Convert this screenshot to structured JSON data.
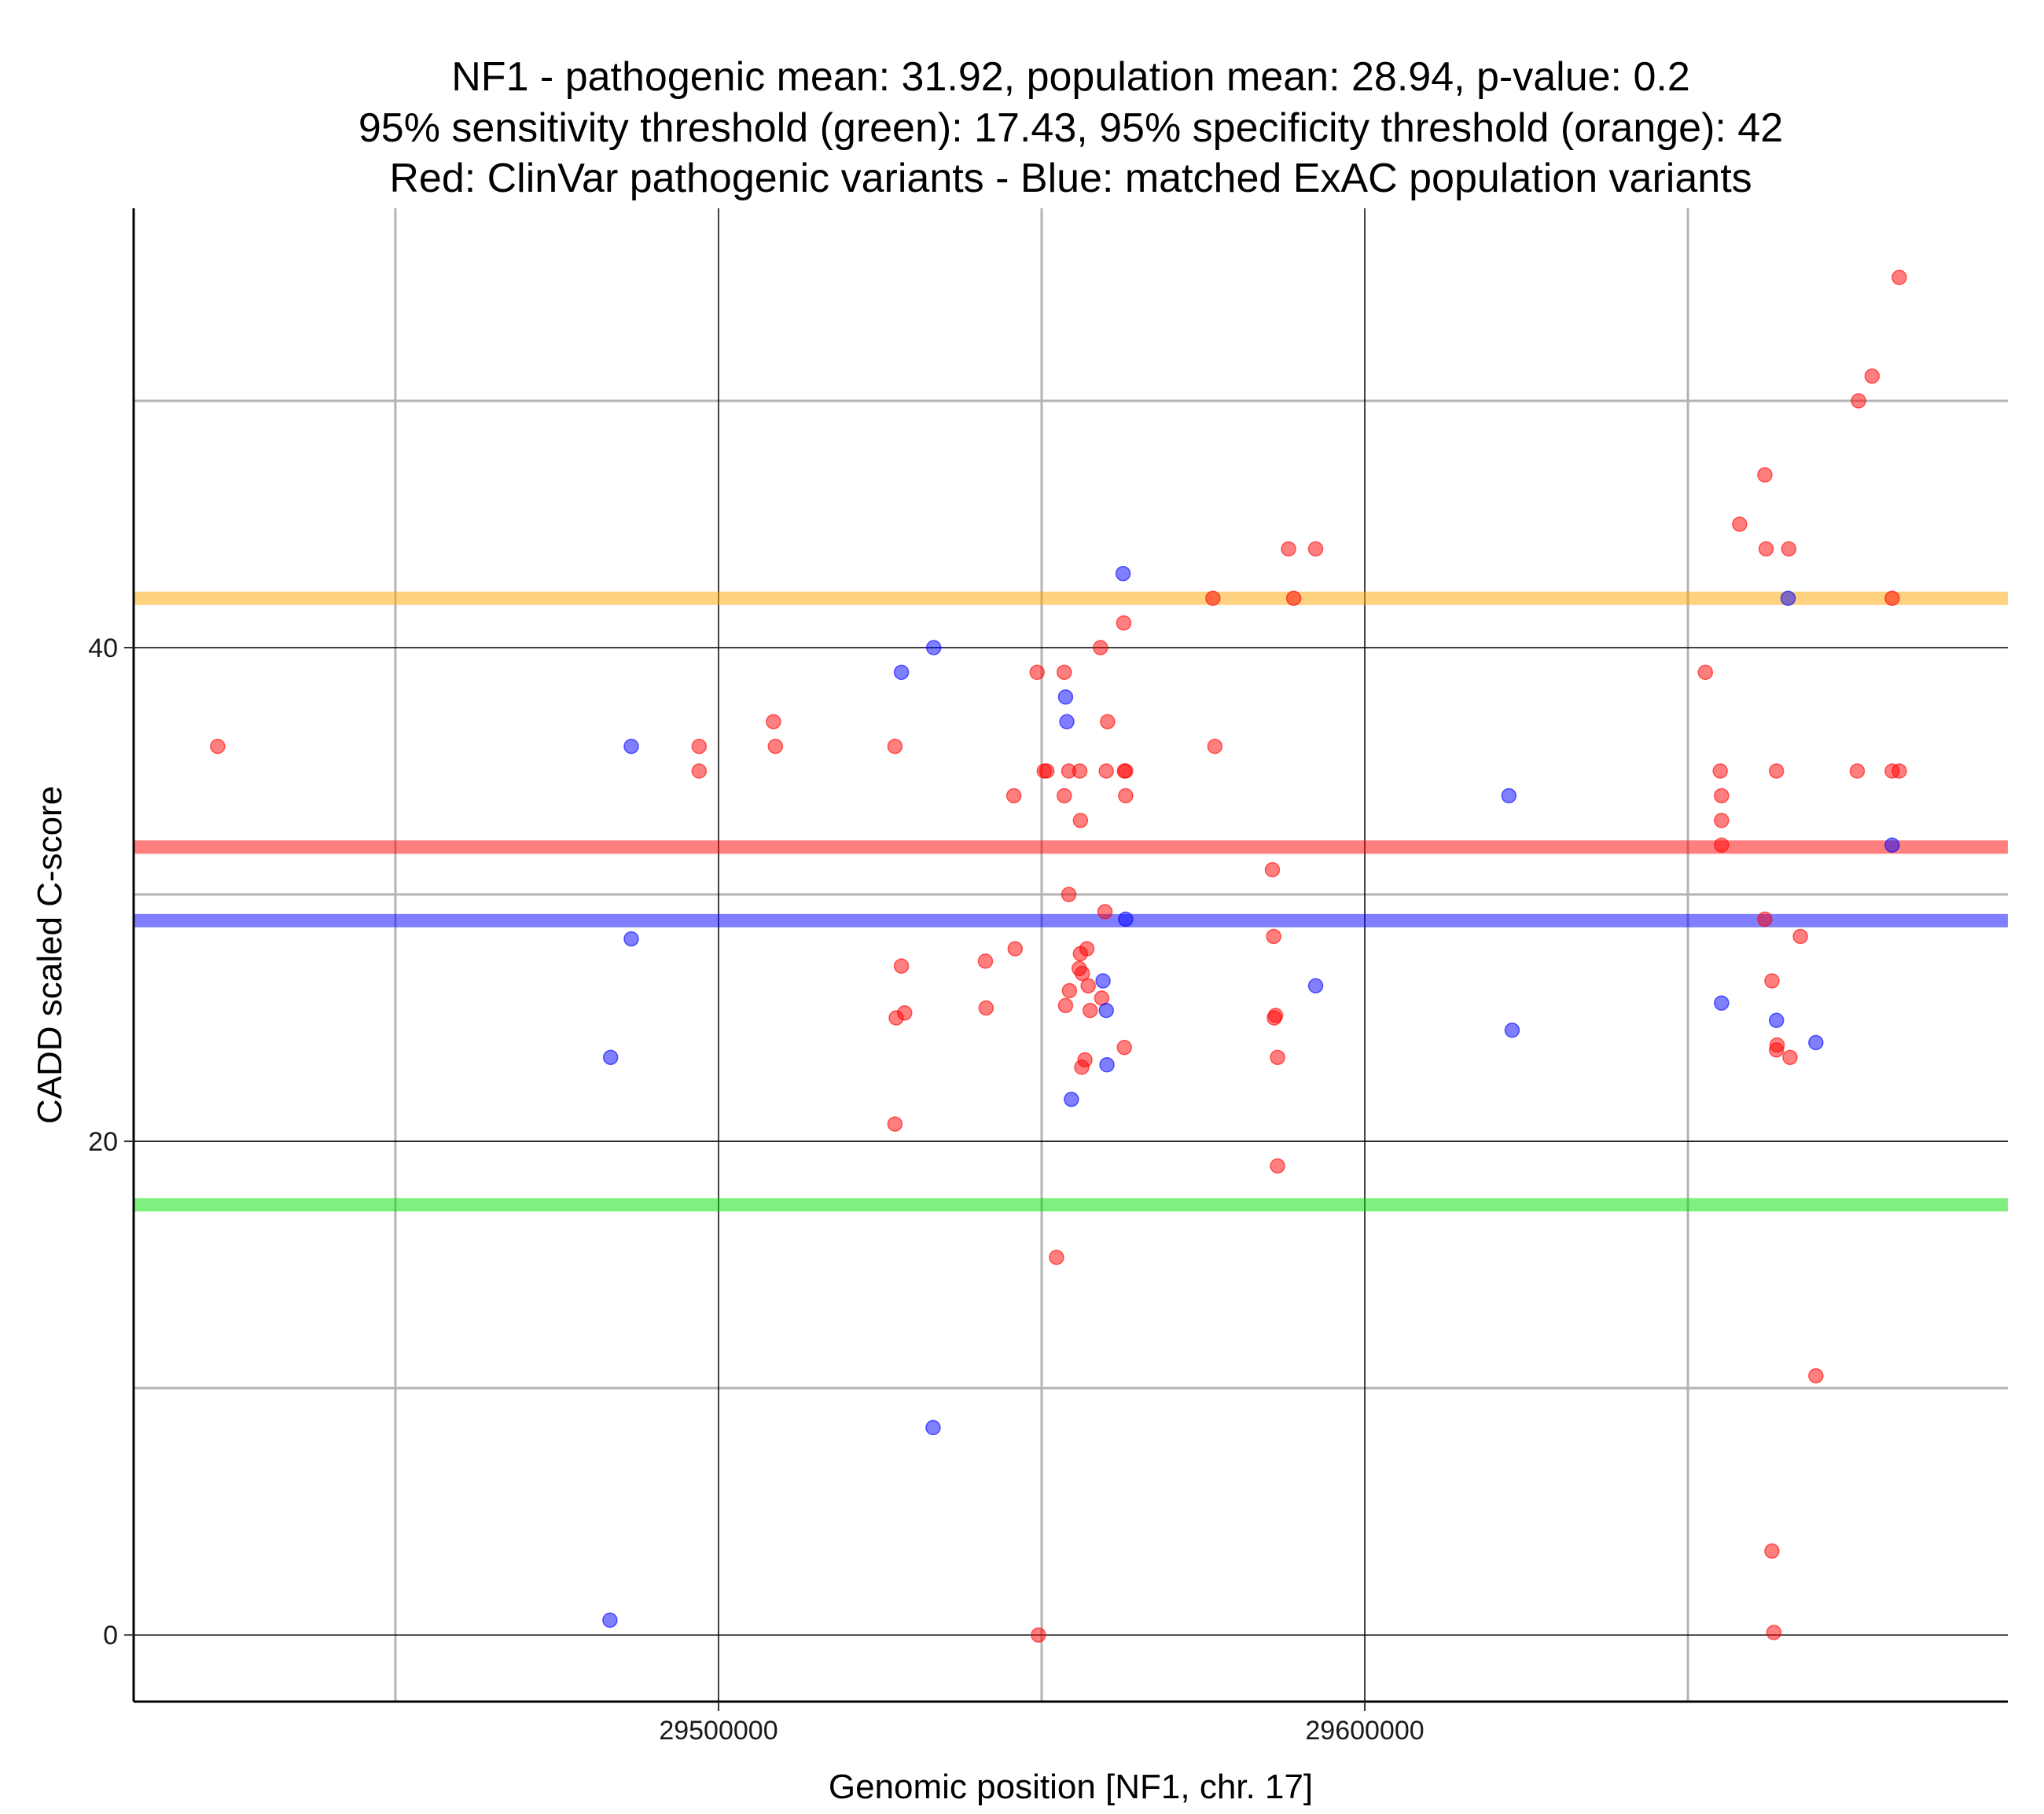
{
  "chart_data": {
    "type": "scatter",
    "title": [
      "NF1 - pathogenic mean: 31.92, population mean: 28.94, p-value: 0.2",
      "95% sensitivity threshold (green): 17.43, 95% specificity threshold (orange): 42",
      "Red: ClinVar pathogenic variants - Blue: matched ExAC population variants"
    ],
    "xlabel": "Genomic position [NF1, chr. 17]",
    "ylabel": "CADD scaled C-score",
    "xlim": [
      29409500,
      29699500
    ],
    "ylim": [
      -2.7,
      57.8
    ],
    "x_major_ticks": [
      29500000,
      29600000
    ],
    "x_minor_ticks": [
      29450000,
      29550000,
      29650000
    ],
    "x_tick_labels": [
      "29500000",
      "29600000"
    ],
    "y_major_ticks": [
      0,
      20,
      40
    ],
    "y_minor_ticks": [
      10,
      30,
      50
    ],
    "y_tick_labels": [
      "0",
      "20",
      "40"
    ],
    "grid": true,
    "colors": {
      "pathogenic": "#ff0000",
      "population": "#0000ff",
      "sensitivity": "#00e000",
      "specificity": "#ffa500"
    },
    "thresholds": [
      {
        "name": "specificity threshold",
        "value": 42,
        "color": "#ffa500"
      },
      {
        "name": "pathogenic mean",
        "value": 31.92,
        "color": "#ff0000"
      },
      {
        "name": "population mean",
        "value": 28.94,
        "color": "#0000ff"
      },
      {
        "name": "sensitivity threshold",
        "value": 17.43,
        "color": "#00e000"
      }
    ],
    "series": [
      {
        "name": "ClinVar pathogenic variants",
        "color": "#ff0000",
        "points": [
          [
            29422500,
            36
          ],
          [
            29497000,
            36
          ],
          [
            29497000,
            35
          ],
          [
            29508500,
            37
          ],
          [
            29508800,
            36
          ],
          [
            29527300,
            36
          ],
          [
            29527500,
            25
          ],
          [
            29527300,
            20.7
          ],
          [
            29528300,
            27.1
          ],
          [
            29528800,
            25.2
          ],
          [
            29541300,
            27.3
          ],
          [
            29541400,
            25.4
          ],
          [
            29545700,
            34
          ],
          [
            29545900,
            27.8
          ],
          [
            29549300,
            39
          ],
          [
            29549500,
            0
          ],
          [
            29550400,
            35
          ],
          [
            29550800,
            35
          ],
          [
            29552300,
            15.3
          ],
          [
            29553500,
            39
          ],
          [
            29553500,
            34
          ],
          [
            29553700,
            25.5
          ],
          [
            29554200,
            35
          ],
          [
            29554200,
            30
          ],
          [
            29554300,
            26.1
          ],
          [
            29555800,
            27
          ],
          [
            29555900,
            35
          ],
          [
            29556000,
            33
          ],
          [
            29556000,
            27.6
          ],
          [
            29556200,
            23
          ],
          [
            29556300,
            26.8
          ],
          [
            29556700,
            23.3
          ],
          [
            29557000,
            27.8
          ],
          [
            29557200,
            26.3
          ],
          [
            29557500,
            25.3
          ],
          [
            29559100,
            40
          ],
          [
            29559300,
            25.8
          ],
          [
            29559800,
            29.3
          ],
          [
            29560000,
            35
          ],
          [
            29560200,
            37
          ],
          [
            29562700,
            41
          ],
          [
            29562800,
            35
          ],
          [
            29563000,
            35
          ],
          [
            29563000,
            34
          ],
          [
            29562800,
            23.8
          ],
          [
            29576500,
            42
          ],
          [
            29576800,
            36
          ],
          [
            29585700,
            31
          ],
          [
            29585900,
            28.3
          ],
          [
            29586000,
            25
          ],
          [
            29586200,
            25.1
          ],
          [
            29586500,
            23.4
          ],
          [
            29586500,
            19
          ],
          [
            29588200,
            44
          ],
          [
            29589000,
            42
          ],
          [
            29592400,
            44
          ],
          [
            29652700,
            39
          ],
          [
            29655000,
            35
          ],
          [
            29655200,
            34
          ],
          [
            29655200,
            33
          ],
          [
            29655200,
            32
          ],
          [
            29658000,
            45
          ],
          [
            29661900,
            29
          ],
          [
            29661900,
            47
          ],
          [
            29662100,
            44
          ],
          [
            29663000,
            3.4
          ],
          [
            29663000,
            26.5
          ],
          [
            29663300,
            0.1
          ],
          [
            29663700,
            35
          ],
          [
            29663700,
            23.7
          ],
          [
            29663800,
            23.9
          ],
          [
            29665600,
            44
          ],
          [
            29665800,
            23.4
          ],
          [
            29667400,
            28.3
          ],
          [
            29669800,
            10.5
          ],
          [
            29676200,
            35
          ],
          [
            29676400,
            50
          ],
          [
            29678500,
            51
          ],
          [
            29681600,
            35
          ],
          [
            29681600,
            42
          ],
          [
            29682700,
            35
          ],
          [
            29682700,
            55
          ]
        ]
      },
      {
        "name": "matched ExAC population variants",
        "color": "#0000ff",
        "points": [
          [
            29483200,
            0.6
          ],
          [
            29483300,
            23.4
          ],
          [
            29486500,
            36
          ],
          [
            29486500,
            28.2
          ],
          [
            29528300,
            39
          ],
          [
            29533300,
            40
          ],
          [
            29533200,
            8.4
          ],
          [
            29553700,
            38
          ],
          [
            29553900,
            37
          ],
          [
            29554600,
            21.7
          ],
          [
            29559500,
            26.5
          ],
          [
            29560000,
            25.3
          ],
          [
            29560100,
            23.1
          ],
          [
            29562600,
            43
          ],
          [
            29563000,
            29
          ],
          [
            29592400,
            26.3
          ],
          [
            29622300,
            34
          ],
          [
            29622800,
            24.5
          ],
          [
            29655200,
            25.6
          ],
          [
            29663700,
            24.9
          ],
          [
            29665500,
            42
          ],
          [
            29669800,
            24
          ],
          [
            29681600,
            32
          ]
        ]
      }
    ]
  }
}
